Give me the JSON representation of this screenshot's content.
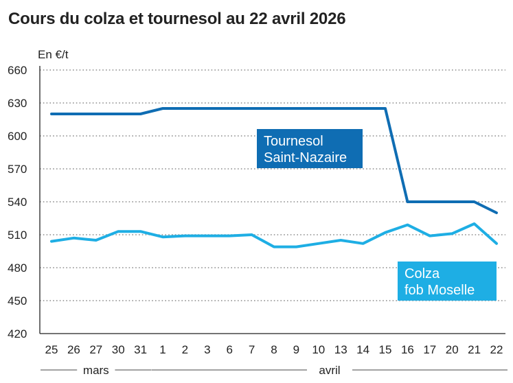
{
  "title": "Cours du colza et tournesol au 22 avril 2026",
  "chart_data": {
    "type": "line",
    "title": "Cours du colza et tournesol au 22 avril 2026",
    "ylabel": "En €/t",
    "xlabel": "",
    "ylim": [
      420,
      660
    ],
    "yticks": [
      420,
      450,
      480,
      510,
      540,
      570,
      600,
      630,
      660
    ],
    "categories": [
      "25",
      "26",
      "27",
      "30",
      "31",
      "1",
      "2",
      "3",
      "6",
      "7",
      "8",
      "9",
      "10",
      "13",
      "14",
      "15",
      "16",
      "17",
      "20",
      "21",
      "22"
    ],
    "months": [
      {
        "label": "mars",
        "start": 0,
        "end": 4
      },
      {
        "label": "avril",
        "start": 5,
        "end": 20
      }
    ],
    "series": [
      {
        "name": "Tournesol Saint-Nazaire",
        "label_lines": [
          "Tournesol",
          "Saint-Nazaire"
        ],
        "color": "#0f6db3",
        "values": [
          620,
          620,
          620,
          620,
          620,
          625,
          625,
          625,
          625,
          625,
          625,
          625,
          625,
          625,
          625,
          625,
          540,
          540,
          540,
          540,
          530
        ]
      },
      {
        "name": "Colza fob Moselle",
        "label_lines": [
          "Colza",
          "fob Moselle"
        ],
        "color": "#1eaee4",
        "values": [
          504,
          507,
          505,
          513,
          513,
          508,
          509,
          509,
          509,
          510,
          499,
          499,
          502,
          505,
          502,
          512,
          519,
          509,
          511,
          520,
          502
        ]
      }
    ]
  }
}
